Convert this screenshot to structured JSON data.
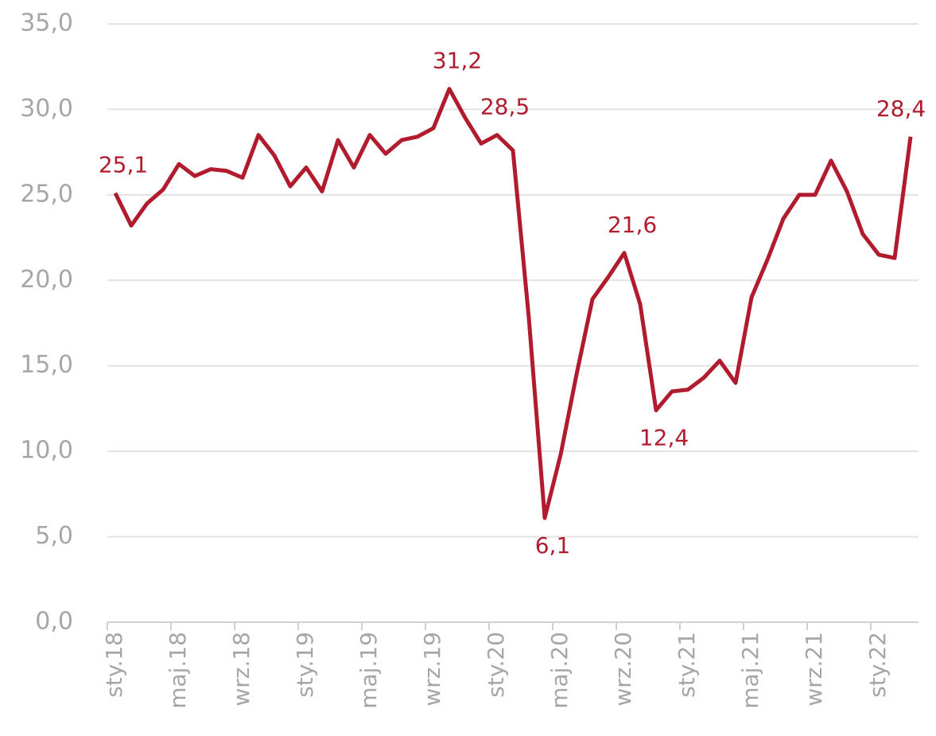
{
  "chart_data": {
    "type": "line",
    "categories": [
      "sty.18",
      null,
      null,
      null,
      "maj.18",
      null,
      null,
      null,
      "wrz.18",
      null,
      null,
      null,
      "sty.19",
      null,
      null,
      null,
      "maj.19",
      null,
      null,
      null,
      "wrz.19",
      null,
      null,
      null,
      "sty.20",
      null,
      null,
      null,
      "maj.20",
      null,
      null,
      null,
      "wrz.20",
      null,
      null,
      null,
      "sty.21",
      null,
      null,
      null,
      "maj.21",
      null,
      null,
      null,
      "wrz.21",
      null,
      null,
      null,
      "sty.22",
      null,
      null
    ],
    "series": [
      {
        "name": "value",
        "color": "#b01c2e",
        "values": [
          25.1,
          23.2,
          24.5,
          25.3,
          26.8,
          26.1,
          26.5,
          26.4,
          26.0,
          28.5,
          27.3,
          25.5,
          26.6,
          25.2,
          28.2,
          26.6,
          28.5,
          27.4,
          28.2,
          28.4,
          28.9,
          31.2,
          29.5,
          28.0,
          28.5,
          27.6,
          17.8,
          6.1,
          9.8,
          14.5,
          18.9,
          20.2,
          21.6,
          18.6,
          12.4,
          13.5,
          13.6,
          14.3,
          15.3,
          14.0,
          19.0,
          21.2,
          23.6,
          25.0,
          25.0,
          27.0,
          25.2,
          22.7,
          21.5,
          21.3,
          28.4
        ],
        "value_labels": [
          "25,1",
          null,
          null,
          null,
          null,
          null,
          null,
          null,
          null,
          null,
          null,
          null,
          null,
          null,
          null,
          null,
          null,
          null,
          null,
          null,
          null,
          "31,2",
          null,
          null,
          "28,5",
          null,
          null,
          "6,1",
          null,
          null,
          null,
          null,
          "21,6",
          null,
          "12,4",
          null,
          null,
          null,
          null,
          null,
          null,
          null,
          null,
          null,
          null,
          null,
          null,
          null,
          null,
          null,
          "28,4"
        ]
      }
    ],
    "ylim": [
      0,
      35
    ],
    "yticks": [
      {
        "value": 0,
        "label": "0,0"
      },
      {
        "value": 5,
        "label": "5,0"
      },
      {
        "value": 10,
        "label": "10,0"
      },
      {
        "value": 15,
        "label": "15,0"
      },
      {
        "value": 20,
        "label": "20,0"
      },
      {
        "value": 25,
        "label": "25,0"
      },
      {
        "value": 30,
        "label": "30,0"
      },
      {
        "value": 35,
        "label": "35,0"
      }
    ],
    "grid": true
  }
}
